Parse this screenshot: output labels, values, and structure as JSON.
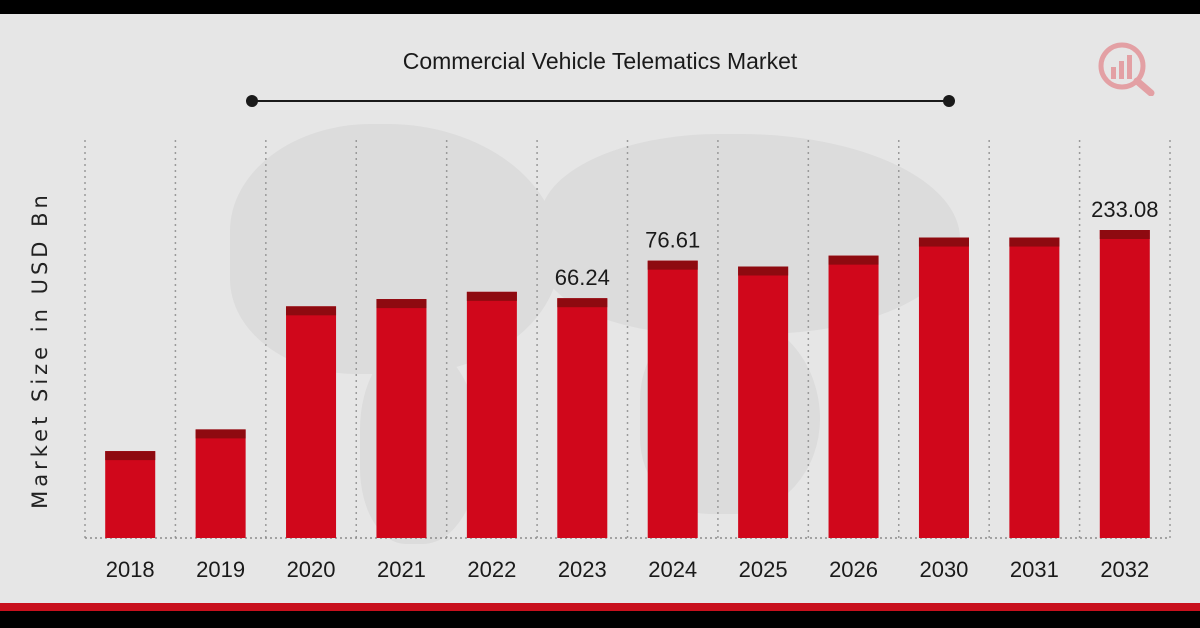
{
  "chart_data": {
    "type": "bar",
    "title": "Commercial Vehicle Telematics Market",
    "ylabel": "Market Size in USD Bn",
    "xlabel": "",
    "categories": [
      "2018",
      "2019",
      "2020",
      "2021",
      "2022",
      "2023",
      "2024",
      "2025",
      "2026",
      "2030",
      "2031",
      "2032"
    ],
    "values": [
      24,
      30,
      64,
      66,
      68,
      66.24,
      76.61,
      75,
      78,
      83,
      83,
      233.08
    ],
    "data_labels": {
      "5": "66.24",
      "6": "76.61",
      "11": "233.08"
    },
    "grid": "vertical-dotted",
    "legend": "none",
    "colors": {
      "bar": "#d0071b",
      "bar_cap": "#8e0a10",
      "background": "#e6e6e6"
    }
  }
}
